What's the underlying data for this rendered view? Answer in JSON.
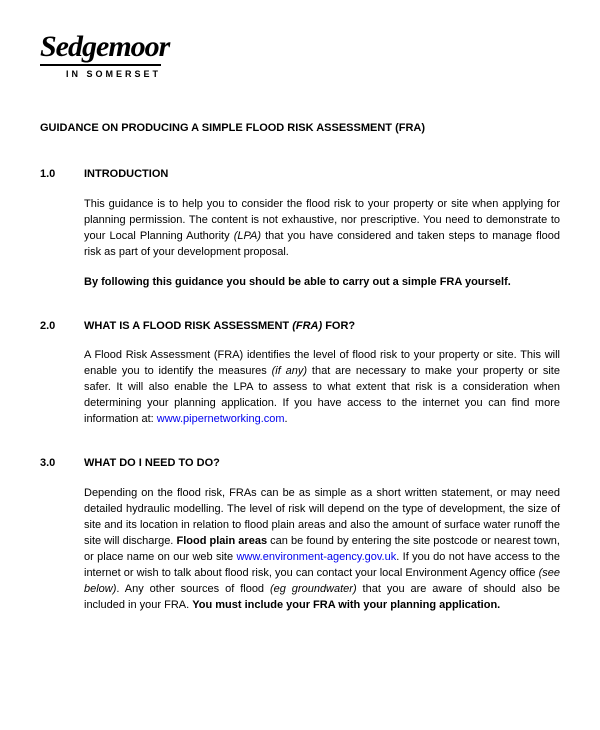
{
  "logo": {
    "main": "Sedgemoor",
    "sub": "IN SOMERSET"
  },
  "title": "GUIDANCE ON PRODUCING A SIMPLE FLOOD RISK ASSESSMENT (FRA)",
  "sections": {
    "s1": {
      "num": "1.0",
      "heading": "INTRODUCTION",
      "p1a": "This guidance is to help you  to consider the flood risk to your property or site when applying for planning permission.  The content is not exhaustive, nor prescriptive.  You need to demonstrate to your Local  Planning Authority ",
      "p1b_italic": "(LPA)",
      "p1c": " that you have considered and taken steps to manage flood risk as part of your development proposal.",
      "p2_bold": "By following this guidance you should be able to carry out a simple FRA yourself."
    },
    "s2": {
      "num": "2.0",
      "heading_a": "WHAT IS A FLOOD RISK ASSESSMENT ",
      "heading_b_italic": "(FRA)",
      "heading_c": " FOR?",
      "p1a": "A Flood Risk Assessment (FRA) identifies the level of flood risk to your property or site.  This will enable you to identify the measures ",
      "p1b_italic": "(if any)",
      "p1c": " that are necessary to make your property or site safer.  It will also enable the LPA to assess to what extent that risk is a consideration when determining your planning application. If you have access to the internet you can find more information at: ",
      "p1_link": "www.pipernetworking.com",
      "p1d": "."
    },
    "s3": {
      "num": "3.0",
      "heading": "WHAT DO I NEED TO DO?",
      "p1a": "Depending on the flood risk, FRAs can be as simple as a short written statement, or may need detailed hydraulic modelling.  The level of risk will depend on the type of development, the size of site and its location in relation to flood plain areas and also the amount of surface water runoff the site will discharge.  ",
      "p1b_bold": "Flood plain areas",
      "p1c": " can be found by entering the site postcode or nearest town, or place name on our web site ",
      "p1_link": "www.environment-agency.gov.uk",
      "p1d": ".   If you do not have access to the internet or wish to talk about flood risk, you can contact your local Environment Agency office ",
      "p1e_italic": "(see below)",
      "p1f": ".  Any other sources of flood ",
      "p1g_italic": "(eg groundwater)",
      "p1h": " that you are aware of should also be included in your FRA.  ",
      "p1i_bold": "You must include your FRA with your planning application."
    }
  }
}
